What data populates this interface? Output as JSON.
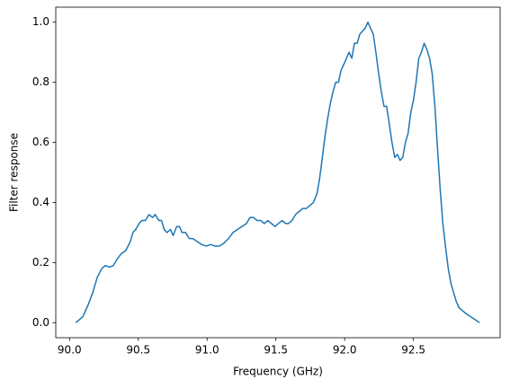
{
  "chart_data": {
    "type": "line",
    "xlabel": "Frequency (GHz)",
    "ylabel": "Filter response",
    "x": [
      90.045,
      90.097,
      90.136,
      90.169,
      90.201,
      90.234,
      90.26,
      90.292,
      90.318,
      90.344,
      90.377,
      90.409,
      90.442,
      90.461,
      90.481,
      90.506,
      90.526,
      90.552,
      90.578,
      90.604,
      90.623,
      90.649,
      90.669,
      90.688,
      90.708,
      90.734,
      90.753,
      90.779,
      90.799,
      90.818,
      90.844,
      90.87,
      90.896,
      90.929,
      90.961,
      90.994,
      91.026,
      91.058,
      91.091,
      91.123,
      91.156,
      91.188,
      91.221,
      91.253,
      91.286,
      91.312,
      91.338,
      91.364,
      91.39,
      91.416,
      91.442,
      91.468,
      91.494,
      91.519,
      91.545,
      91.571,
      91.591,
      91.617,
      91.643,
      91.669,
      91.695,
      91.721,
      91.747,
      91.773,
      91.799,
      91.818,
      91.838,
      91.857,
      91.877,
      91.896,
      91.916,
      91.935,
      91.955,
      91.974,
      91.994,
      92.013,
      92.032,
      92.052,
      92.071,
      92.091,
      92.11,
      92.13,
      92.149,
      92.169,
      92.188,
      92.208,
      92.227,
      92.247,
      92.266,
      92.286,
      92.305,
      92.325,
      92.344,
      92.364,
      92.383,
      92.403,
      92.422,
      92.442,
      92.461,
      92.481,
      92.5,
      92.519,
      92.539,
      92.558,
      92.578,
      92.597,
      92.617,
      92.636,
      92.656,
      92.675,
      92.695,
      92.714,
      92.734,
      92.753,
      92.773,
      92.792,
      92.812,
      92.831,
      92.857,
      92.883,
      92.916,
      92.948,
      92.981
    ],
    "series": [
      {
        "color": "#1f77b4",
        "values": [
          0.0,
          0.02,
          0.06,
          0.1,
          0.15,
          0.18,
          0.19,
          0.185,
          0.19,
          0.21,
          0.23,
          0.24,
          0.27,
          0.3,
          0.31,
          0.33,
          0.34,
          0.34,
          0.36,
          0.35,
          0.36,
          0.34,
          0.34,
          0.31,
          0.3,
          0.31,
          0.29,
          0.32,
          0.32,
          0.3,
          0.3,
          0.28,
          0.28,
          0.27,
          0.26,
          0.255,
          0.26,
          0.255,
          0.255,
          0.265,
          0.28,
          0.3,
          0.31,
          0.32,
          0.33,
          0.35,
          0.35,
          0.34,
          0.34,
          0.33,
          0.34,
          0.33,
          0.32,
          0.33,
          0.34,
          0.33,
          0.33,
          0.34,
          0.36,
          0.37,
          0.38,
          0.38,
          0.39,
          0.4,
          0.43,
          0.48,
          0.55,
          0.62,
          0.68,
          0.73,
          0.77,
          0.8,
          0.8,
          0.84,
          0.86,
          0.88,
          0.9,
          0.88,
          0.93,
          0.93,
          0.96,
          0.97,
          0.98,
          1.0,
          0.98,
          0.96,
          0.9,
          0.83,
          0.77,
          0.72,
          0.72,
          0.66,
          0.6,
          0.55,
          0.56,
          0.54,
          0.55,
          0.6,
          0.63,
          0.7,
          0.74,
          0.8,
          0.88,
          0.9,
          0.93,
          0.91,
          0.88,
          0.83,
          0.72,
          0.58,
          0.44,
          0.33,
          0.25,
          0.18,
          0.13,
          0.1,
          0.07,
          0.05,
          0.04,
          0.03,
          0.02,
          0.01,
          0.0
        ]
      }
    ],
    "xlim": [
      89.9,
      93.13
    ],
    "xticks": [
      {
        "value": 90,
        "label": "90.0"
      },
      {
        "value": 90.5,
        "label": "90.5"
      },
      {
        "value": 91,
        "label": "91.0"
      },
      {
        "value": 91.5,
        "label": "91.5"
      },
      {
        "value": 92,
        "label": "92.0"
      },
      {
        "value": 92.5,
        "label": "92.5"
      }
    ],
    "ylim": [
      -0.05,
      1.05
    ],
    "yticks": [
      {
        "value": 0,
        "label": "0.0"
      },
      {
        "value": 0.2,
        "label": "0.2"
      },
      {
        "value": 0.4,
        "label": "0.4"
      },
      {
        "value": 0.6,
        "label": "0.6"
      },
      {
        "value": 0.8,
        "label": "0.8"
      },
      {
        "value": 1,
        "label": "1.0"
      }
    ],
    "grid": false
  }
}
